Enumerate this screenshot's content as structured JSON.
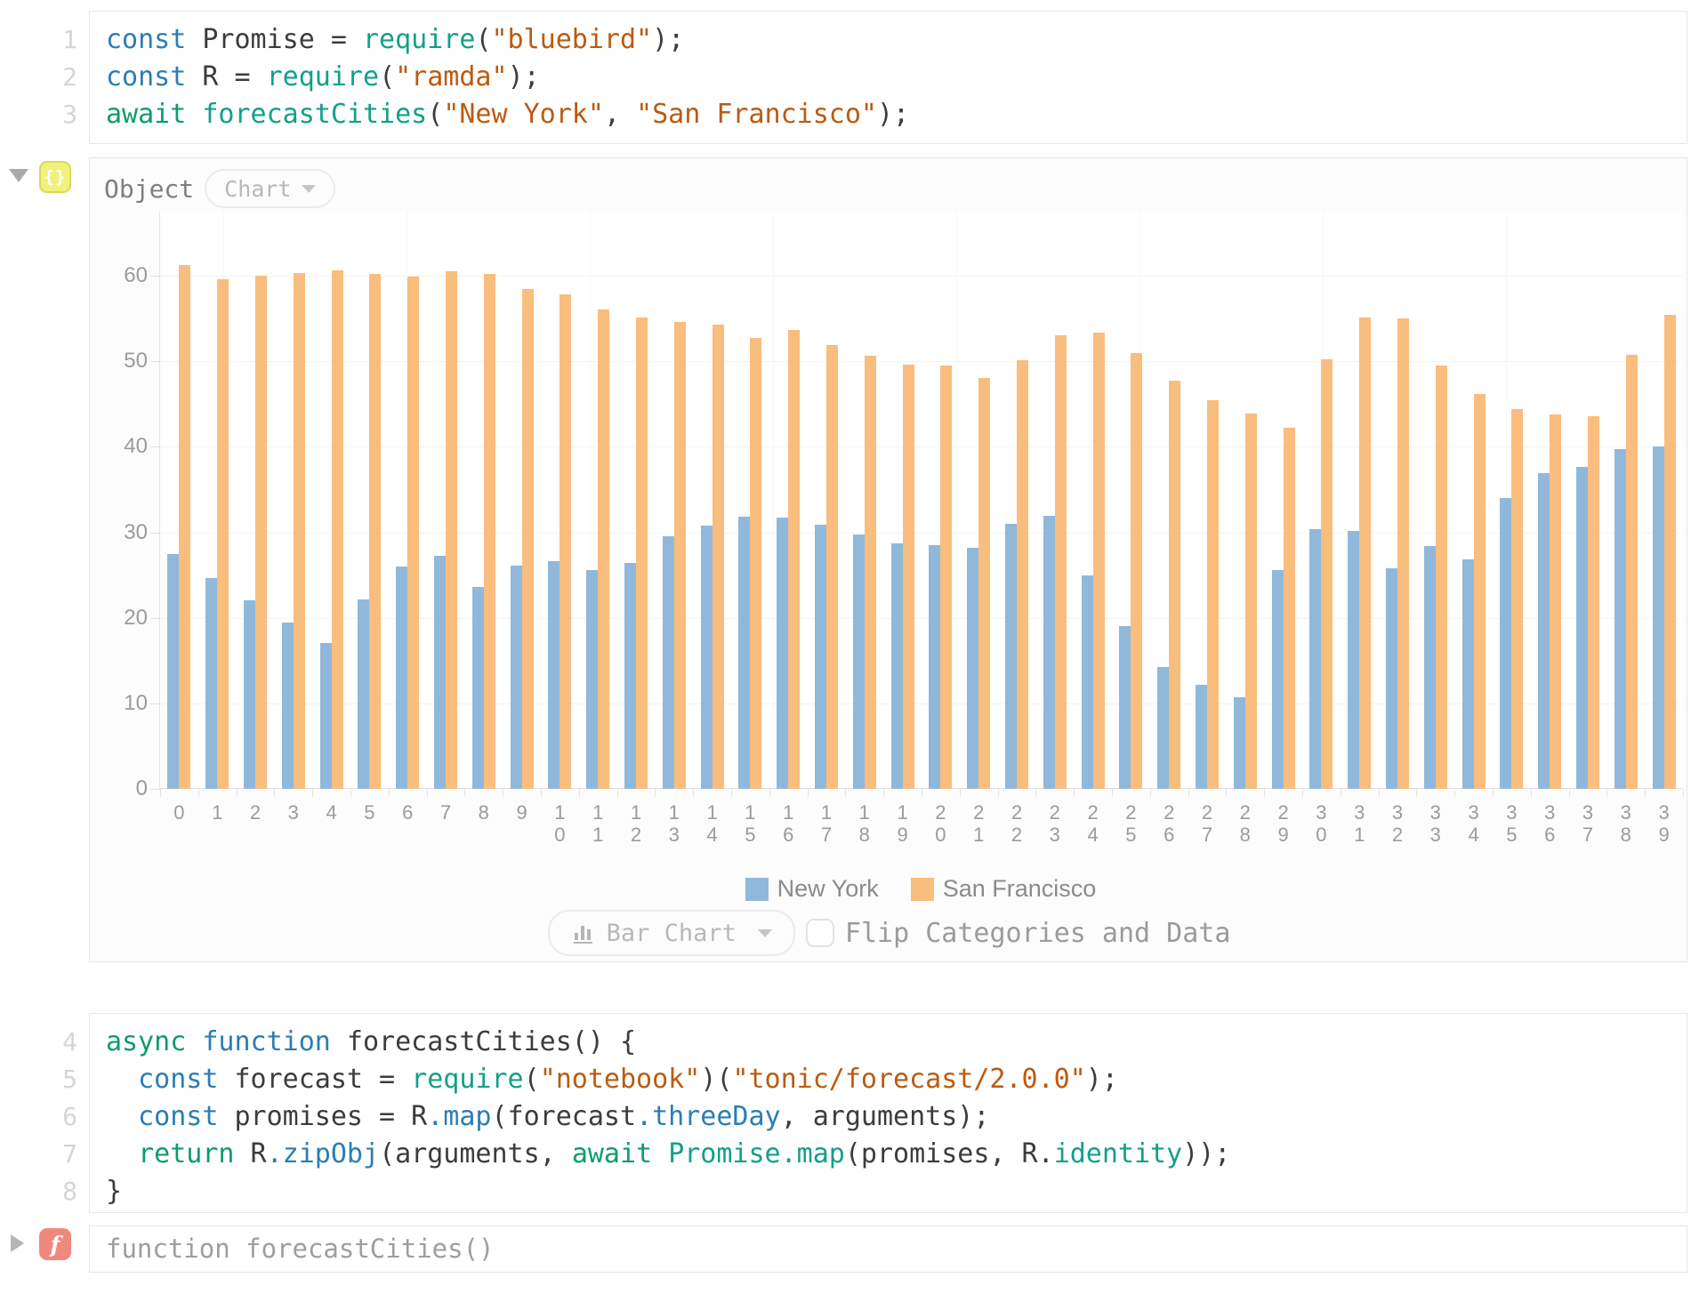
{
  "colors": {
    "keyword": "#2a7db6",
    "call": "#12a089",
    "control": "#0f9d68",
    "string": "#bc5a10",
    "plain": "#3a3c3f",
    "new_york_bar": "#90b8da",
    "san_francisco_bar": "#f9bd7e"
  },
  "cells": [
    {
      "id": "cell1",
      "lines": [
        {
          "num": "1",
          "tokens": [
            [
              "keyword",
              "const"
            ],
            [
              "plain",
              " Promise = "
            ],
            [
              "call",
              "require"
            ],
            [
              "plain",
              "("
            ],
            [
              "string",
              "\"bluebird\""
            ],
            [
              "plain",
              ");"
            ]
          ]
        },
        {
          "num": "2",
          "tokens": [
            [
              "keyword",
              "const"
            ],
            [
              "plain",
              " R = "
            ],
            [
              "call",
              "require"
            ],
            [
              "plain",
              "("
            ],
            [
              "string",
              "\"ramda\""
            ],
            [
              "plain",
              ");"
            ]
          ]
        },
        {
          "num": "3",
          "tokens": [
            [
              "control",
              "await"
            ],
            [
              "plain",
              " "
            ],
            [
              "call",
              "forecastCities"
            ],
            [
              "plain",
              "("
            ],
            [
              "string",
              "\"New York\""
            ],
            [
              "plain",
              ", "
            ],
            [
              "string",
              "\"San Francisco\""
            ],
            [
              "plain",
              ");"
            ]
          ]
        }
      ]
    },
    {
      "id": "cell2",
      "lines": [
        {
          "num": "4",
          "tokens": [
            [
              "control",
              "async"
            ],
            [
              "plain",
              " "
            ],
            [
              "keyword",
              "function"
            ],
            [
              "plain",
              " forecastCities() {"
            ]
          ]
        },
        {
          "num": "5",
          "tokens": [
            [
              "plain",
              "  "
            ],
            [
              "keyword",
              "const"
            ],
            [
              "plain",
              " forecast = "
            ],
            [
              "call",
              "require"
            ],
            [
              "plain",
              "("
            ],
            [
              "string",
              "\"notebook\""
            ],
            [
              "plain",
              ")("
            ],
            [
              "string",
              "\"tonic/forecast/2.0.0\""
            ],
            [
              "plain",
              ");"
            ]
          ]
        },
        {
          "num": "6",
          "tokens": [
            [
              "plain",
              "  "
            ],
            [
              "keyword",
              "const"
            ],
            [
              "plain",
              " promises = R"
            ],
            [
              "keyword",
              ".map"
            ],
            [
              "plain",
              "(forecast"
            ],
            [
              "keyword",
              ".threeDay"
            ],
            [
              "plain",
              ", arguments);"
            ]
          ]
        },
        {
          "num": "7",
          "tokens": [
            [
              "plain",
              "  "
            ],
            [
              "control",
              "return"
            ],
            [
              "plain",
              " R"
            ],
            [
              "keyword",
              ".zipObj"
            ],
            [
              "plain",
              "(arguments, "
            ],
            [
              "control",
              "await"
            ],
            [
              "plain",
              " "
            ],
            [
              "call",
              "Promise.map"
            ],
            [
              "plain",
              "(promises, R."
            ],
            [
              "call",
              "identity"
            ],
            [
              "plain",
              "));"
            ]
          ]
        },
        {
          "num": "8",
          "tokens": [
            [
              "plain",
              "}"
            ]
          ]
        }
      ]
    }
  ],
  "output_object": {
    "badge": "{}",
    "label": "Object",
    "view_dropdown": {
      "value": "Chart"
    }
  },
  "chart_data": {
    "type": "bar",
    "categories": [
      "0",
      "1",
      "2",
      "3",
      "4",
      "5",
      "6",
      "7",
      "8",
      "9",
      "10",
      "11",
      "12",
      "13",
      "14",
      "15",
      "16",
      "17",
      "18",
      "19",
      "20",
      "21",
      "22",
      "23",
      "24",
      "25",
      "26",
      "27",
      "28",
      "29",
      "30",
      "31",
      "32",
      "33",
      "34",
      "35",
      "36",
      "37",
      "38",
      "39"
    ],
    "series": [
      {
        "name": "New York",
        "values": [
          27.5,
          24.6,
          22.0,
          19.5,
          17.1,
          22.2,
          26.0,
          27.2,
          23.6,
          26.1,
          26.6,
          25.6,
          26.4,
          29.5,
          30.8,
          31.8,
          31.7,
          30.9,
          29.7,
          28.7,
          28.5,
          28.2,
          31.0,
          31.9,
          25.0,
          19.0,
          14.3,
          12.2,
          10.7,
          25.6,
          30.4,
          30.2,
          25.8,
          28.4,
          26.8,
          34.0,
          36.9,
          37.6,
          39.7,
          40.0
        ]
      },
      {
        "name": "San Francisco",
        "values": [
          61.3,
          59.6,
          60.0,
          60.3,
          60.6,
          60.2,
          59.9,
          60.5,
          60.2,
          58.4,
          57.8,
          56.1,
          55.1,
          54.6,
          54.3,
          52.7,
          53.7,
          51.9,
          50.6,
          49.6,
          49.5,
          48.0,
          50.1,
          53.0,
          53.4,
          51.0,
          47.7,
          45.5,
          43.9,
          42.2,
          50.2,
          55.1,
          55.0,
          49.5,
          46.2,
          44.4,
          43.8,
          43.6,
          50.8,
          55.4
        ]
      }
    ],
    "title": "",
    "xlabel": "",
    "ylabel": "",
    "ylim": [
      0,
      67.5
    ],
    "yticks": [
      0,
      10,
      20,
      30,
      40,
      50,
      60
    ],
    "grid": true,
    "legend_position": "bottom-center"
  },
  "chart_controls": {
    "type_dropdown": {
      "label": "Bar Chart"
    },
    "flip_checkbox": {
      "checked": false,
      "label": "Flip Categories and Data"
    }
  },
  "output_function": {
    "badge": "f",
    "text": "function forecastCities()"
  }
}
